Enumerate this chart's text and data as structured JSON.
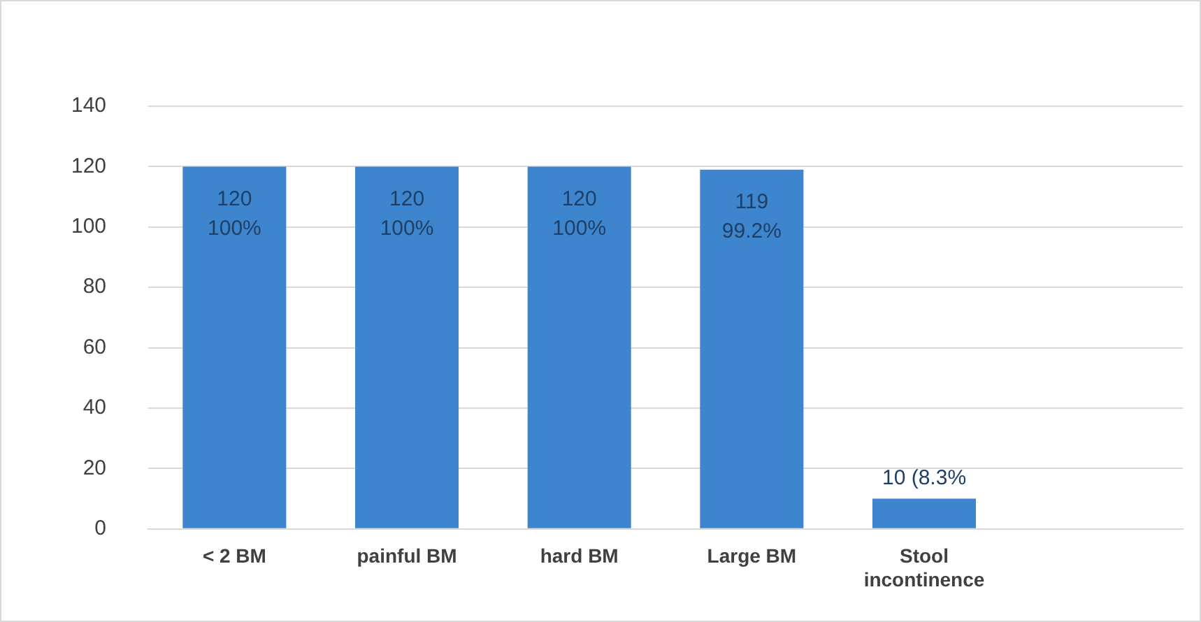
{
  "chart_data": {
    "type": "bar",
    "categories": [
      "< 2 BM",
      "painful BM",
      "hard BM",
      "Large BM",
      "Stool incontinence",
      null
    ],
    "values": [
      120,
      120,
      120,
      119,
      10,
      null
    ],
    "color": "#3d85cc",
    "value_labels": [
      "120",
      "120",
      "120",
      "119",
      "10 (8.3%",
      null
    ],
    "annotations": [
      {
        "text": "100%",
        "x": "< 2 BM",
        "y": 120
      },
      {
        "text": "100%",
        "x": "painful BM",
        "y": 120
      },
      {
        "text": "100%",
        "x": "hard BM",
        "y": 120
      },
      {
        "text": "99.2%",
        "x": "Large BM",
        "y": 119
      }
    ],
    "ylim": [
      0,
      140
    ],
    "yticks": [
      0,
      20,
      40,
      60,
      80,
      100,
      120,
      140
    ],
    "grid": "y",
    "legend": false
  }
}
